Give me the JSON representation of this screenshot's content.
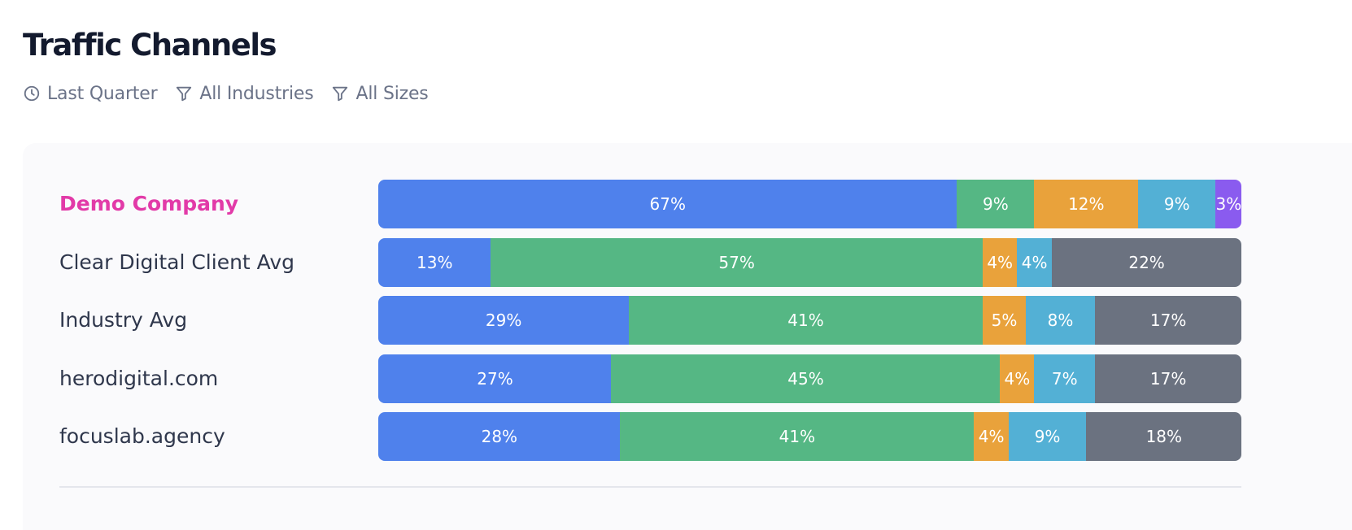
{
  "header": {
    "title": "Traffic Channels",
    "filters": [
      {
        "label": "Last Quarter",
        "icon": "clock-icon"
      },
      {
        "label": "All Industries",
        "icon": "filter-icon"
      },
      {
        "label": "All Sizes",
        "icon": "filter-icon"
      }
    ]
  },
  "colors": {
    "blue": "#4f81ec",
    "green": "#55b784",
    "orange": "#e9a23b",
    "cyan": "#53b0d5",
    "purple": "#8a5bef",
    "gray": "#6b7280",
    "highlight_label": "#e23aa8"
  },
  "chart_data": {
    "type": "bar",
    "stacked": true,
    "orientation": "horizontal",
    "categories": [
      "Demo Company",
      "Clear Digital Client Avg",
      "Industry Avg",
      "herodigital.com",
      "focuslab.agency"
    ],
    "highlighted_category": "Demo Company",
    "series": [
      {
        "color": "#4f81ec",
        "values": [
          67,
          13,
          29,
          27,
          28
        ]
      },
      {
        "color": "#55b784",
        "values": [
          9,
          57,
          41,
          45,
          41
        ]
      },
      {
        "color": "#e9a23b",
        "values": [
          12,
          4,
          5,
          4,
          4
        ]
      },
      {
        "color": "#53b0d5",
        "values": [
          9,
          4,
          8,
          7,
          9
        ]
      },
      {
        "color": "#8a5bef",
        "values": [
          3,
          0,
          0,
          0,
          0
        ]
      },
      {
        "color": "#6b7280",
        "values": [
          0,
          22,
          17,
          17,
          18
        ]
      }
    ],
    "value_suffix": "%",
    "xlim": [
      0,
      100
    ],
    "legend": "none",
    "grid": false
  }
}
